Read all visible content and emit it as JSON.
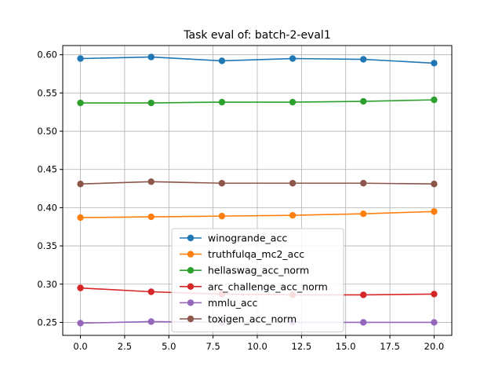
{
  "chart_data": {
    "type": "line",
    "title": "Task eval of: batch-2-eval1",
    "xlabel": "",
    "ylabel": "",
    "xlim": [
      -1.0,
      21.0
    ],
    "ylim": [
      0.233,
      0.612
    ],
    "xticks": [
      0.0,
      2.5,
      5.0,
      7.5,
      10.0,
      12.5,
      15.0,
      17.5,
      20.0
    ],
    "xtick_labels": [
      "0.0",
      "2.5",
      "5.0",
      "7.5",
      "10.0",
      "12.5",
      "15.0",
      "17.5",
      "20.0"
    ],
    "yticks": [
      0.25,
      0.3,
      0.35,
      0.4,
      0.45,
      0.5,
      0.55,
      0.6
    ],
    "ytick_labels": [
      "0.25",
      "0.30",
      "0.35",
      "0.40",
      "0.45",
      "0.50",
      "0.55",
      "0.60"
    ],
    "grid": true,
    "legend_position": "lower-center",
    "x": [
      0,
      4,
      8,
      12,
      16,
      20
    ],
    "series": [
      {
        "name": "winogrande_acc",
        "color": "#1f77b4",
        "values": [
          0.595,
          0.597,
          0.592,
          0.595,
          0.594,
          0.589
        ]
      },
      {
        "name": "truthfulqa_mc2_acc",
        "color": "#ff7f0e",
        "values": [
          0.387,
          0.388,
          0.389,
          0.39,
          0.392,
          0.395
        ]
      },
      {
        "name": "hellaswag_acc_norm",
        "color": "#2ca02c",
        "values": [
          0.537,
          0.537,
          0.538,
          0.538,
          0.539,
          0.541
        ]
      },
      {
        "name": "arc_challenge_acc_norm",
        "color": "#d62728",
        "values": [
          0.295,
          0.29,
          0.287,
          0.286,
          0.286,
          0.287
        ]
      },
      {
        "name": "mmlu_acc",
        "color": "#9467bd",
        "values": [
          0.249,
          0.251,
          0.25,
          0.25,
          0.25,
          0.25
        ]
      },
      {
        "name": "toxigen_acc_norm",
        "color": "#8c564b",
        "values": [
          0.431,
          0.434,
          0.432,
          0.432,
          0.432,
          0.431
        ]
      }
    ]
  }
}
